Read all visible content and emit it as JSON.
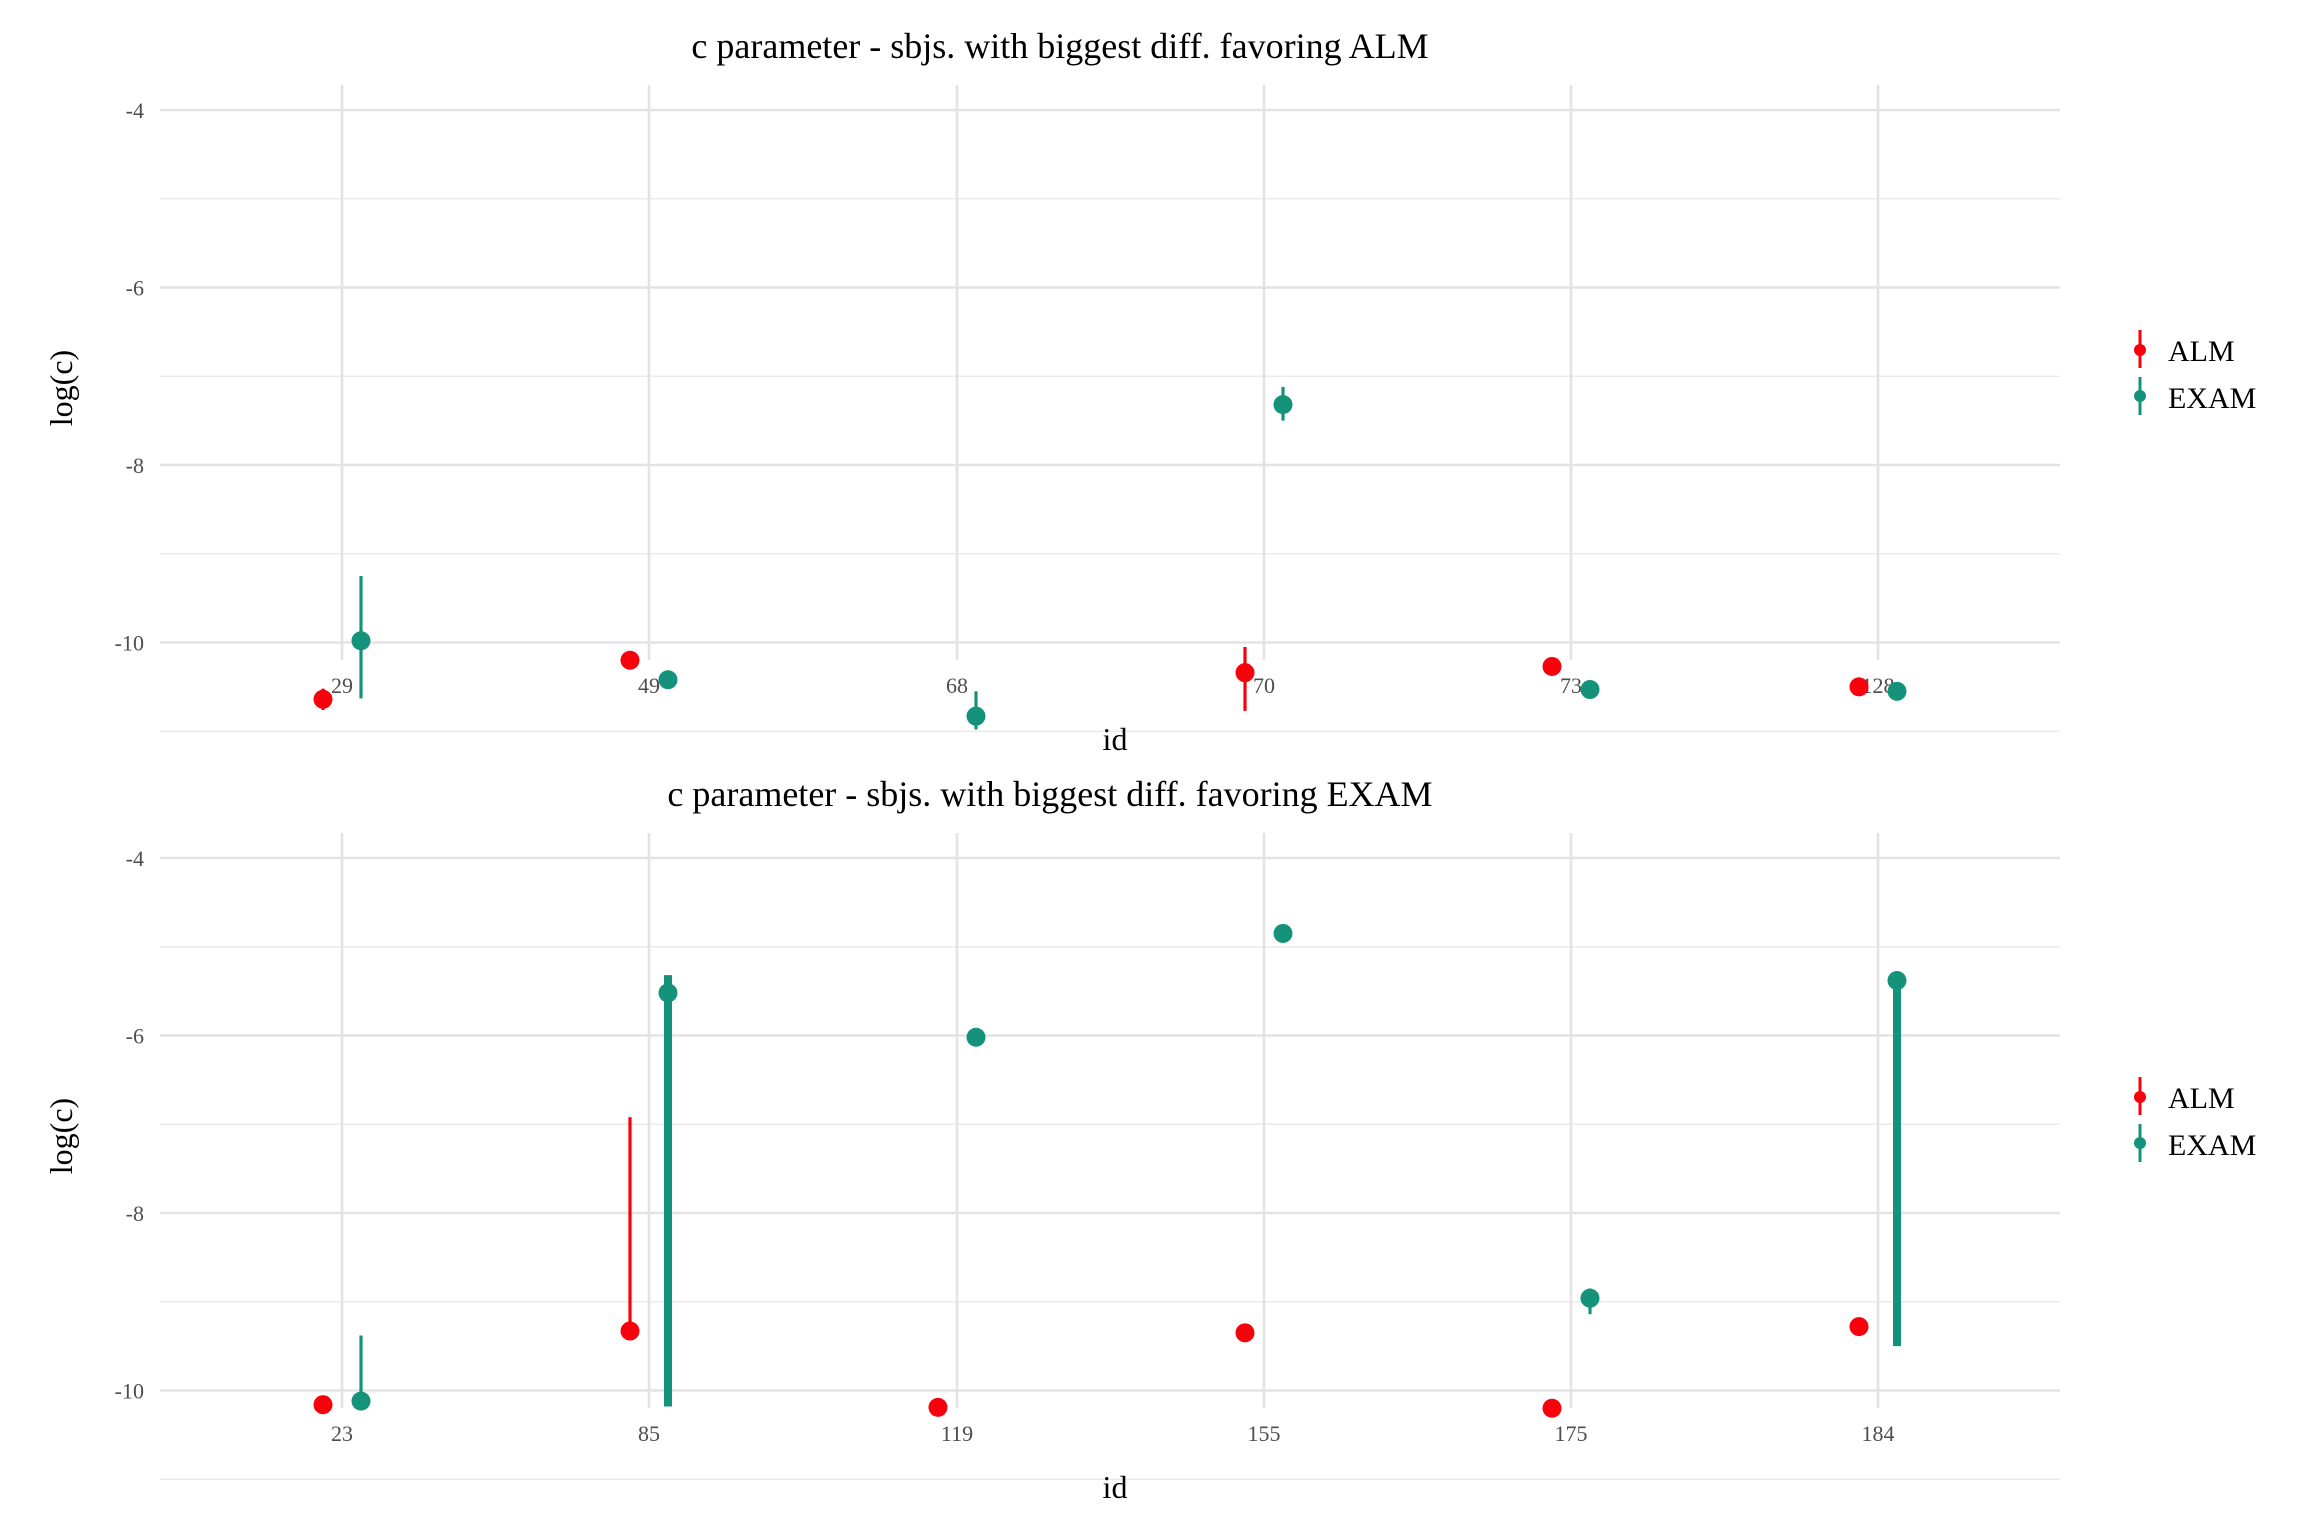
{
  "colors": {
    "ALM": "#f8000c",
    "EXAM": "#14937a"
  },
  "chart_data": [
    {
      "type": "scatter",
      "subtype": "pointrange",
      "title": "c parameter - sbjs. with biggest diff. favoring ALM",
      "xlabel": "id",
      "ylabel": "log(c)",
      "categories": [
        "29",
        "49",
        "68",
        "70",
        "73",
        "128"
      ],
      "ylim": [
        -11.2,
        -3.7
      ],
      "yticks": [
        -4,
        -6,
        -8,
        -10
      ],
      "grid": true,
      "legend": {
        "position": "right",
        "entries": [
          "ALM",
          "EXAM"
        ]
      },
      "series": [
        {
          "name": "ALM",
          "color": "#f8000c",
          "points": [
            {
              "id": "29",
              "y": -10.64,
              "lo": -10.76,
              "hi": -10.52
            },
            {
              "id": "49",
              "y": -10.2,
              "lo": -10.28,
              "hi": -10.12
            },
            {
              "id": "68",
              "y": null,
              "lo": null,
              "hi": null
            },
            {
              "id": "70",
              "y": -10.34,
              "lo": -10.77,
              "hi": -10.05
            },
            {
              "id": "73",
              "y": -10.27,
              "lo": -10.34,
              "hi": -10.2
            },
            {
              "id": "128",
              "y": -10.5,
              "lo": -10.6,
              "hi": -10.4
            }
          ]
        },
        {
          "name": "EXAM",
          "color": "#14937a",
          "points": [
            {
              "id": "29",
              "y": -9.98,
              "lo": -10.63,
              "hi": -9.25
            },
            {
              "id": "49",
              "y": -10.42,
              "lo": -10.5,
              "hi": -10.34
            },
            {
              "id": "68",
              "y": -10.83,
              "lo": -10.98,
              "hi": -10.55
            },
            {
              "id": "70",
              "y": -7.32,
              "lo": -7.5,
              "hi": -7.12
            },
            {
              "id": "73",
              "y": -10.53,
              "lo": -10.61,
              "hi": -10.45
            },
            {
              "id": "128",
              "y": -10.55,
              "lo": -10.63,
              "hi": -10.47
            }
          ]
        }
      ]
    },
    {
      "type": "scatter",
      "subtype": "pointrange",
      "title": "c parameter - sbjs. with biggest diff. favoring EXAM",
      "xlabel": "id",
      "ylabel": "log(c)",
      "categories": [
        "23",
        "85",
        "119",
        "155",
        "175",
        "184"
      ],
      "ylim": [
        -11.2,
        -3.7
      ],
      "yticks": [
        -4,
        -6,
        -8,
        -10
      ],
      "grid": true,
      "legend": {
        "position": "right",
        "entries": [
          "ALM",
          "EXAM"
        ]
      },
      "series": [
        {
          "name": "ALM",
          "color": "#f8000c",
          "points": [
            {
              "id": "23",
              "y": -10.16,
              "lo": -10.24,
              "hi": -10.08
            },
            {
              "id": "85",
              "y": -9.33,
              "lo": -9.33,
              "hi": -6.92
            },
            {
              "id": "119",
              "y": -10.19,
              "lo": -10.27,
              "hi": -10.11
            },
            {
              "id": "155",
              "y": -9.35,
              "lo": -9.43,
              "hi": -9.27
            },
            {
              "id": "175",
              "y": -10.2,
              "lo": -10.28,
              "hi": -10.12
            },
            {
              "id": "184",
              "y": -9.28,
              "lo": -9.36,
              "hi": -9.2
            }
          ]
        },
        {
          "name": "EXAM",
          "color": "#14937a",
          "points": [
            {
              "id": "23",
              "y": -10.12,
              "lo": -10.22,
              "hi": -9.38
            },
            {
              "id": "85",
              "y": -5.52,
              "lo": -10.18,
              "hi": -5.32
            },
            {
              "id": "119",
              "y": -6.02,
              "lo": -6.1,
              "hi": -5.94
            },
            {
              "id": "155",
              "y": -4.85,
              "lo": -4.93,
              "hi": -4.77
            },
            {
              "id": "175",
              "y": -8.96,
              "lo": -9.14,
              "hi": -8.85
            },
            {
              "id": "184",
              "y": -5.38,
              "lo": -9.5,
              "hi": -5.3
            }
          ]
        }
      ]
    }
  ]
}
